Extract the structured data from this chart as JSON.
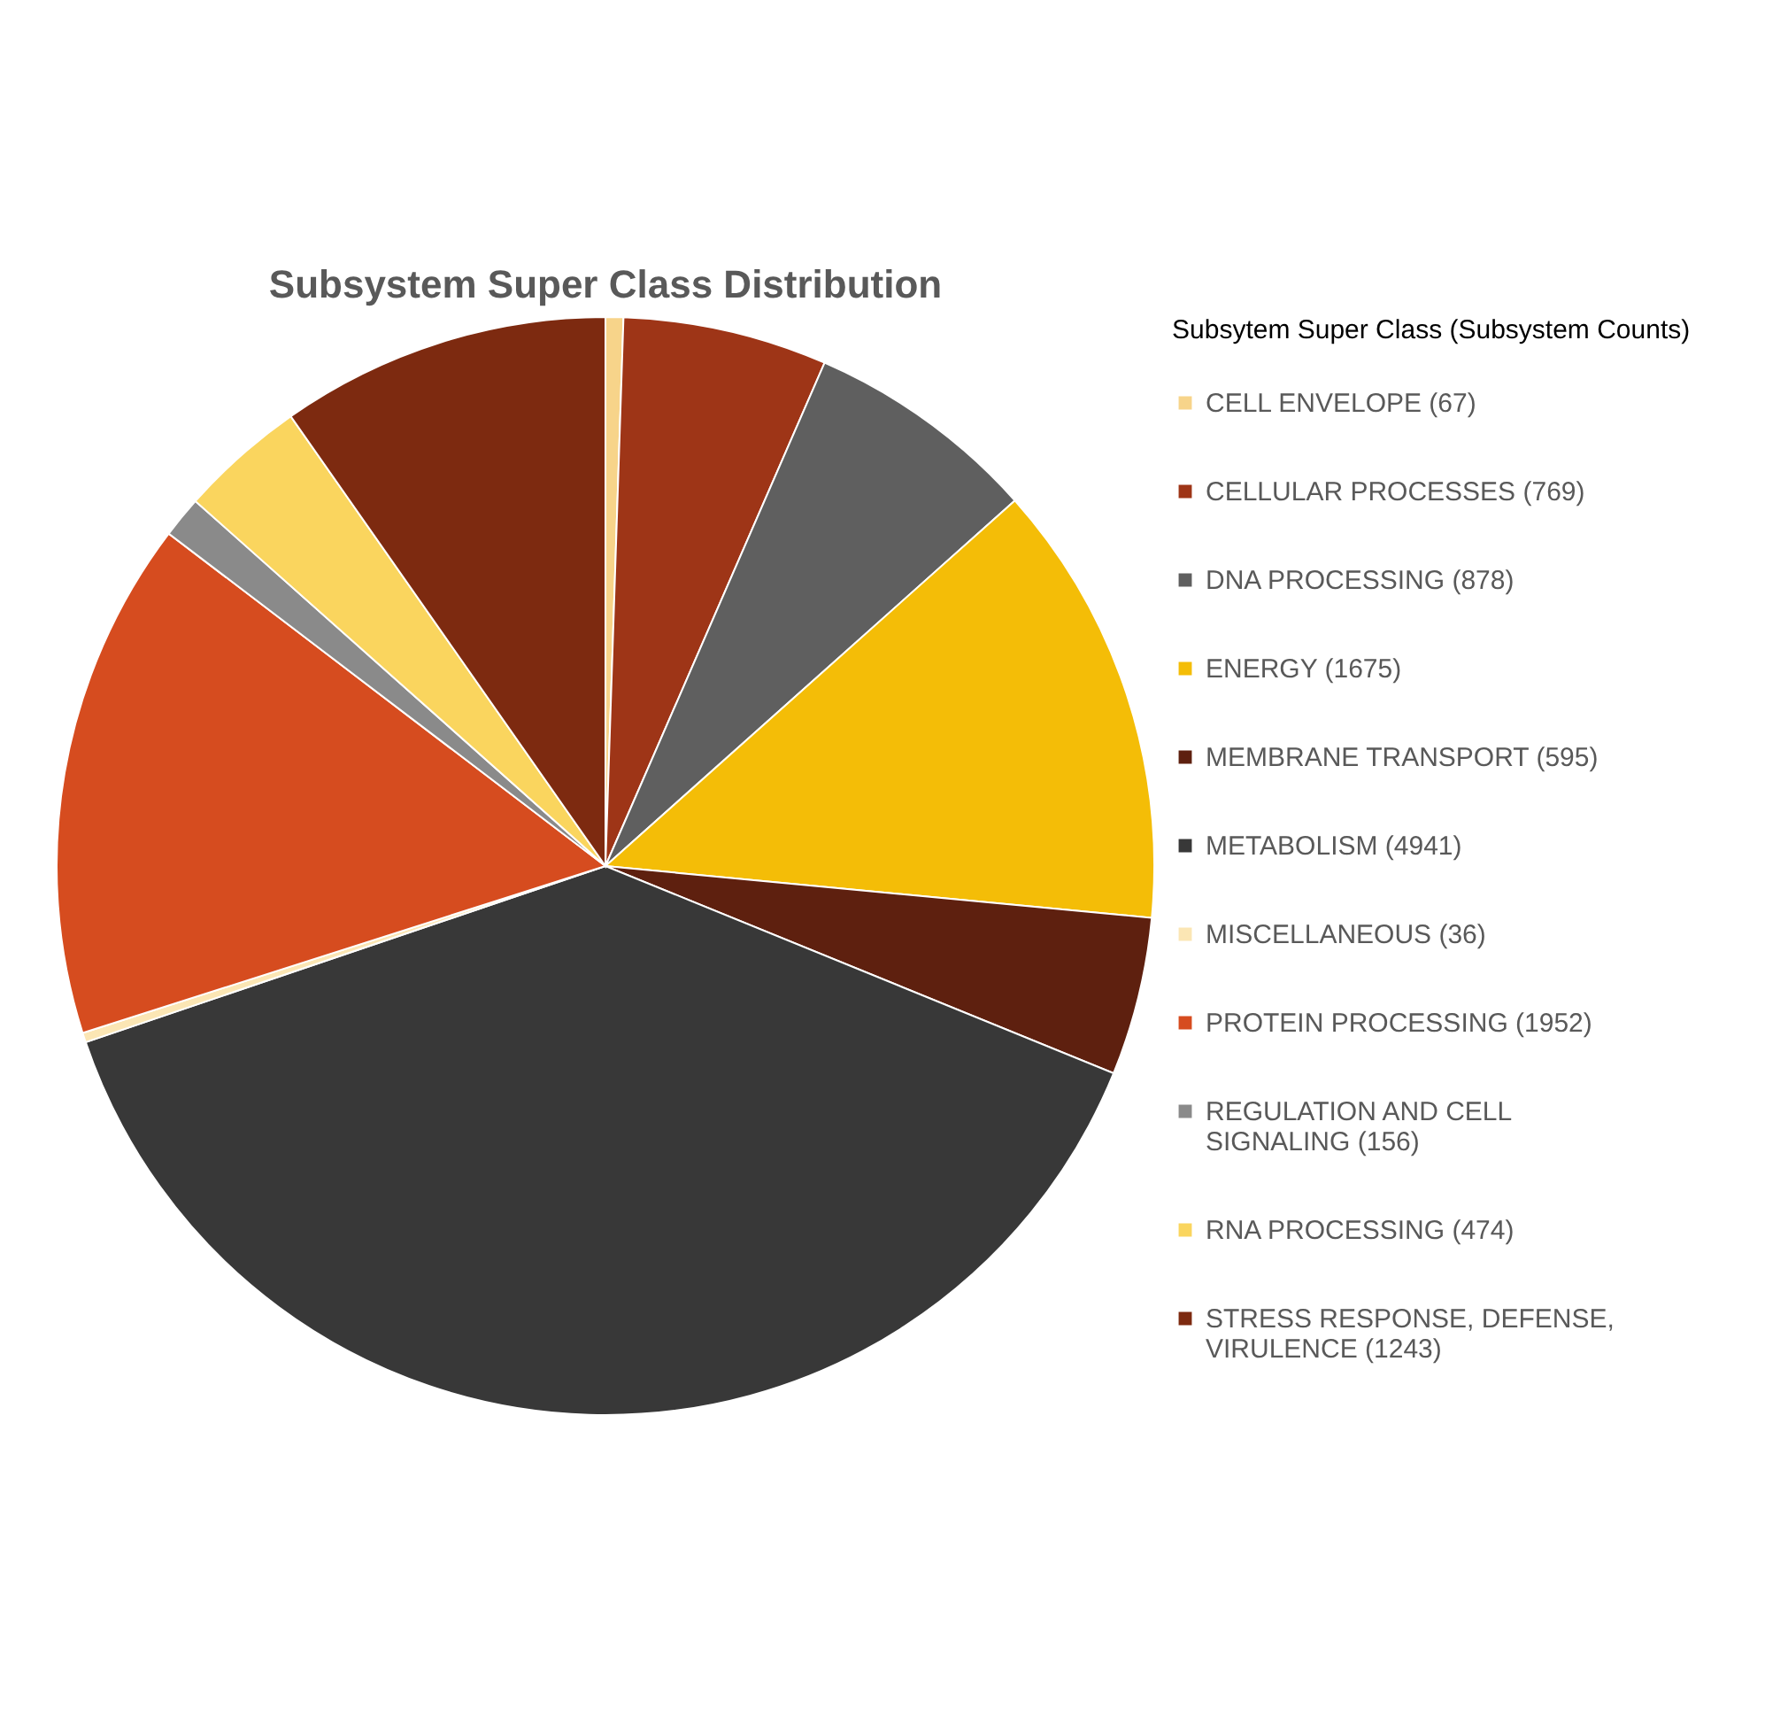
{
  "chart_data": {
    "type": "pie",
    "title": "Subsystem Super Class Distribution",
    "legend_title": "Subsytem Super Class (Subsystem Counts)",
    "categories": [
      "CELL ENVELOPE (67)",
      "CELLULAR PROCESSES (769)",
      "DNA PROCESSING (878)",
      "ENERGY (1675)",
      "MEMBRANE TRANSPORT (595)",
      "METABOLISM (4941)",
      "MISCELLANEOUS (36)",
      "PROTEIN PROCESSING (1952)",
      "REGULATION AND CELL SIGNALING (156)",
      "RNA PROCESSING (474)",
      "STRESS RESPONSE, DEFENSE, VIRULENCE (1243)"
    ],
    "values": [
      67,
      769,
      878,
      1675,
      595,
      4941,
      36,
      1952,
      156,
      474,
      1243
    ],
    "colors": [
      "#f7d48a",
      "#9e3517",
      "#5f5f5f",
      "#f4bd07",
      "#5e200f",
      "#383838",
      "#fbe6b4",
      "#d64c1f",
      "#8a8a8a",
      "#fad55e",
      "#7d2a10"
    ],
    "legend": "right"
  }
}
